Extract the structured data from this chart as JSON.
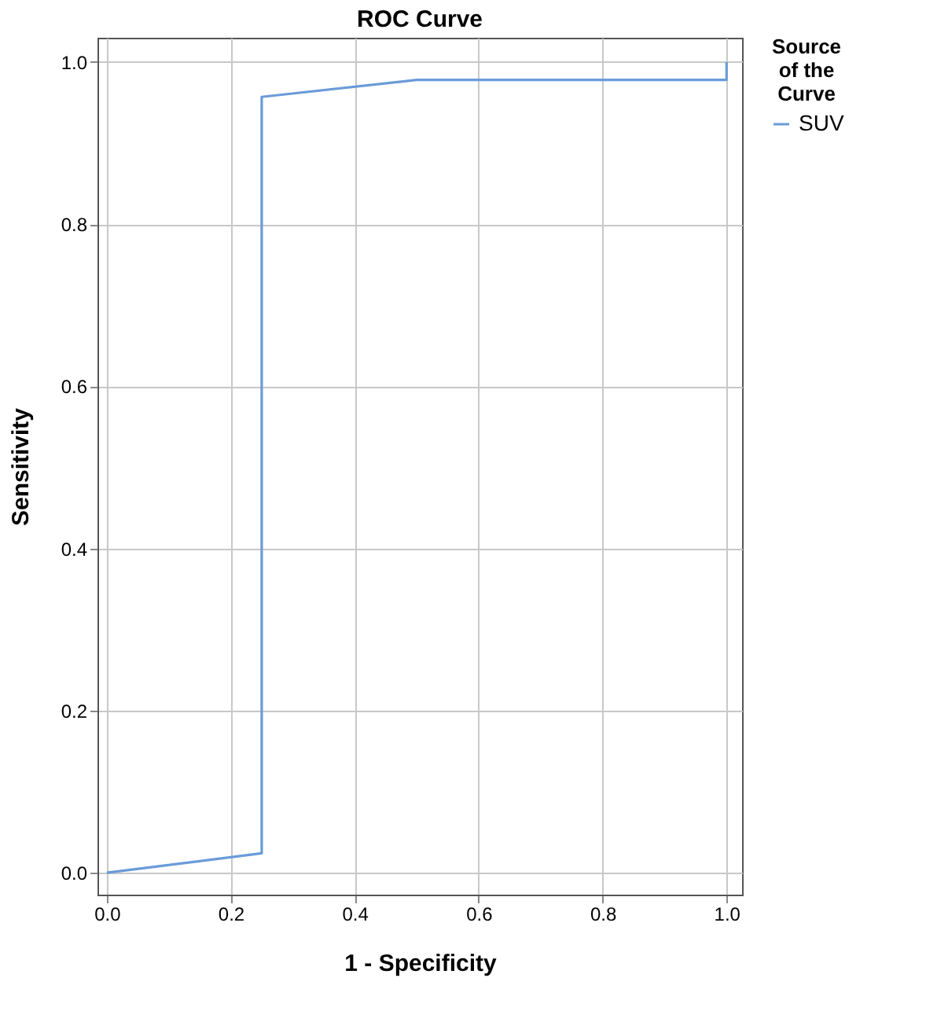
{
  "chart_data": {
    "type": "line",
    "title": "ROC Curve",
    "xlabel": "1 - Specificity",
    "ylabel": "Sensitivity",
    "legend_title": "Source of the Curve",
    "legend": "top right",
    "grid": true,
    "line_style": "solid",
    "xlim": [
      -0.015,
      1.025
    ],
    "ylim": [
      -0.027,
      1.03
    ],
    "xticks": [
      {
        "value": 0,
        "label": "0.0"
      },
      {
        "value": 0.2,
        "label": "0.2"
      },
      {
        "value": 0.4,
        "label": "0.4"
      },
      {
        "value": 0.6,
        "label": "0.6"
      },
      {
        "value": 0.8,
        "label": "0.8"
      },
      {
        "value": 1,
        "label": "1.0"
      }
    ],
    "yticks": [
      {
        "value": 0,
        "label": "0.0"
      },
      {
        "value": 0.2,
        "label": "0.2"
      },
      {
        "value": 0.4,
        "label": "0.4"
      },
      {
        "value": 0.6,
        "label": "0.6"
      },
      {
        "value": 0.8,
        "label": "0.8"
      },
      {
        "value": 1,
        "label": "1.0"
      }
    ],
    "series": [
      {
        "name": "SUV",
        "color": "#6a9bd8",
        "x": [
          0,
          0.25,
          0.25,
          0.5,
          1,
          1
        ],
        "values": [
          0,
          0.024,
          0.957,
          0.978,
          0.978,
          1
        ]
      }
    ]
  }
}
